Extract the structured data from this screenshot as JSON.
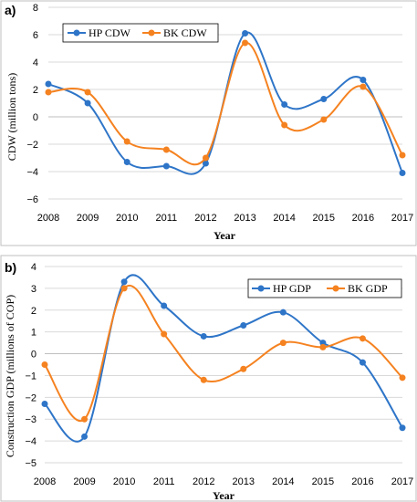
{
  "colors": {
    "hp": "#2E75C8",
    "bk": "#F58220",
    "grid": "#D9D9D9",
    "frame": "#BFBFBF"
  },
  "chart_data": [
    {
      "panel_label": "a)",
      "type": "line",
      "smooth": true,
      "x": [
        2008,
        2009,
        2010,
        2011,
        2012,
        2013,
        2014,
        2015,
        2016,
        2017
      ],
      "xlabel": "Year",
      "ylabel": "CDW (million tons)",
      "ylim": [
        -6,
        8
      ],
      "yticks": [
        -6,
        -4,
        -2,
        0,
        2,
        4,
        6,
        8
      ],
      "yticklabels": [
        "−6",
        "−4",
        "−2",
        "0",
        "2",
        "4",
        "6",
        "8"
      ],
      "grid": "horizontal",
      "legend": "top-left",
      "series": [
        {
          "name": "HP CDW",
          "color": "#2E75C8",
          "values": [
            2.4,
            1.0,
            -3.3,
            -3.6,
            -3.4,
            6.1,
            0.9,
            1.3,
            2.7,
            -4.1
          ]
        },
        {
          "name": "BK CDW",
          "color": "#F58220",
          "values": [
            1.8,
            1.8,
            -1.8,
            -2.4,
            -3.0,
            5.4,
            -0.6,
            -0.2,
            2.2,
            -2.8
          ]
        }
      ]
    },
    {
      "panel_label": "b)",
      "type": "line",
      "smooth": true,
      "x": [
        2008,
        2009,
        2010,
        2011,
        2012,
        2013,
        2014,
        2015,
        2016,
        2017
      ],
      "xlabel": "Year",
      "ylabel": "Construction GDP (millions of COP)",
      "ylim": [
        -5,
        4
      ],
      "yticks": [
        -5,
        -4,
        -3,
        -2,
        -1,
        0,
        1,
        2,
        3,
        4
      ],
      "yticklabels": [
        "−5",
        "−4",
        "−3",
        "−2",
        "−1",
        "0",
        "1",
        "2",
        "3",
        "4"
      ],
      "grid": "horizontal",
      "legend": "top-right",
      "series": [
        {
          "name": "HP GDP",
          "color": "#2E75C8",
          "values": [
            -2.3,
            -3.8,
            3.3,
            2.2,
            0.8,
            1.3,
            1.9,
            0.5,
            -0.4,
            -3.4
          ]
        },
        {
          "name": "BK GDP",
          "color": "#F58220",
          "values": [
            -0.5,
            -3.0,
            3.0,
            0.9,
            -1.2,
            -0.7,
            0.5,
            0.3,
            0.7,
            -1.1
          ]
        }
      ]
    }
  ]
}
